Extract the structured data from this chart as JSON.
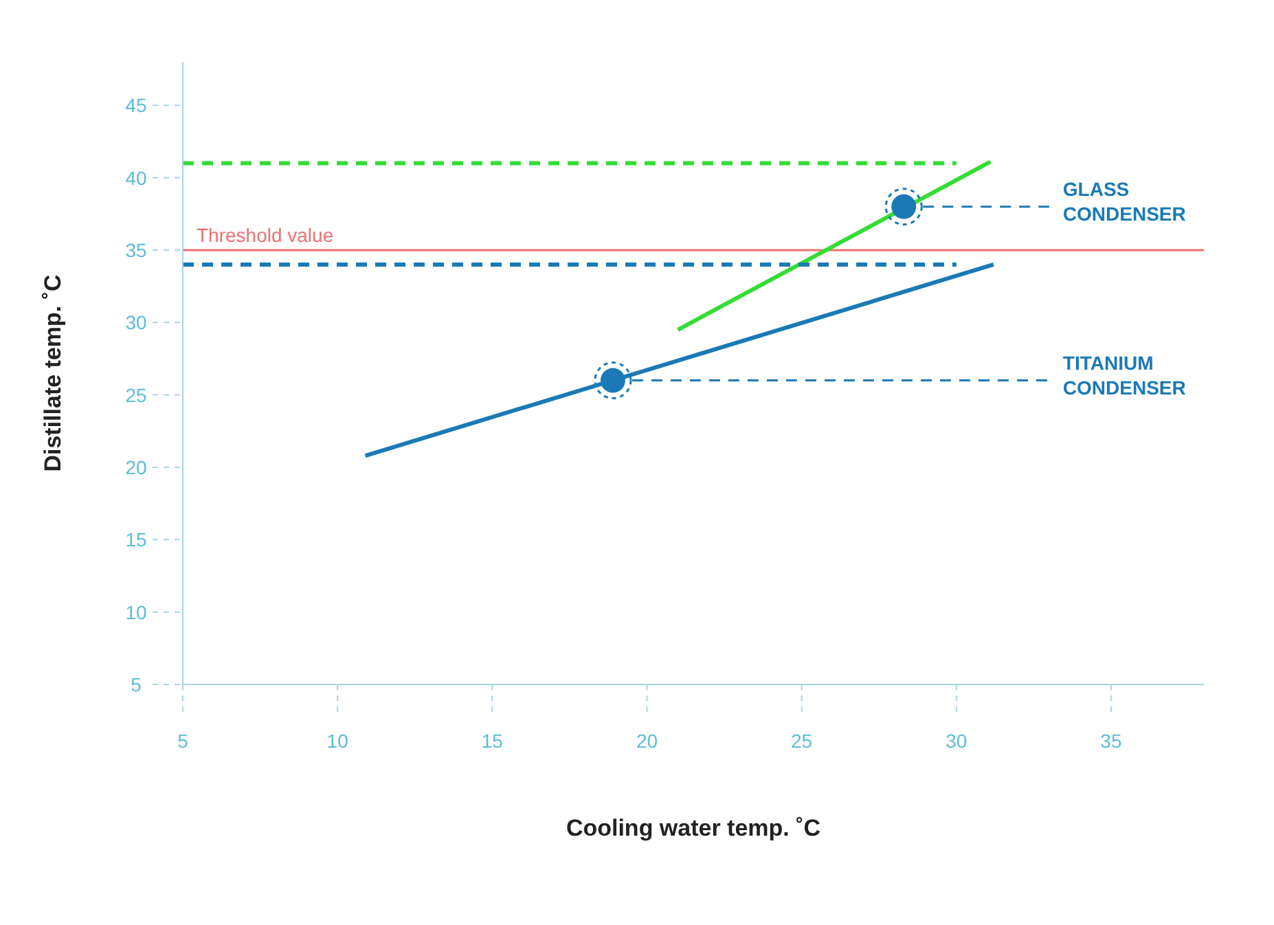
{
  "chart_data": {
    "type": "line",
    "xlabel": "Cooling water temp. ˚C",
    "ylabel": "Distillate temp. ˚C",
    "xlim": [
      5,
      38
    ],
    "xticks": [
      5,
      10,
      15,
      20,
      25,
      30,
      35
    ],
    "ylim": [
      5,
      48
    ],
    "yticks": [
      5,
      10,
      15,
      20,
      25,
      30,
      35,
      40,
      45
    ],
    "grid": false,
    "legend": false,
    "ref_lines": [
      {
        "axis": "y",
        "value": 35,
        "label": "Threshold value",
        "color": "#f07070"
      }
    ],
    "series": [
      {
        "color": "#33dd33",
        "x": [
          21,
          31.1
        ],
        "values": [
          29.5,
          41.1
        ]
      },
      {
        "color": "#1a7ab5",
        "x": [
          10.9,
          31.2
        ],
        "values": [
          20.8,
          34
        ]
      },
      {
        "color": "#33dd33",
        "line_style": "dashed",
        "x": [
          5,
          30
        ],
        "values": [
          41,
          41
        ]
      },
      {
        "color": "#1a7ab5",
        "line_style": "dashed",
        "x": [
          5,
          30
        ],
        "values": [
          34,
          34
        ]
      },
      {
        "name": "GLASS CONDENSER",
        "color": "#1a7ab5",
        "line_style": "dashed",
        "x": [
          28.3,
          33
        ],
        "values": [
          38,
          38
        ]
      },
      {
        "name": "TITANIUM CONDENSER",
        "color": "#1a7ab5",
        "line_style": "dashed",
        "x": [
          18.9,
          33
        ],
        "values": [
          26,
          26
        ]
      },
      {
        "type": "scatter",
        "color": "#1a7ab5",
        "marker": "circle",
        "x": [
          28.3,
          18.9
        ],
        "values": [
          38,
          26
        ]
      }
    ]
  }
}
